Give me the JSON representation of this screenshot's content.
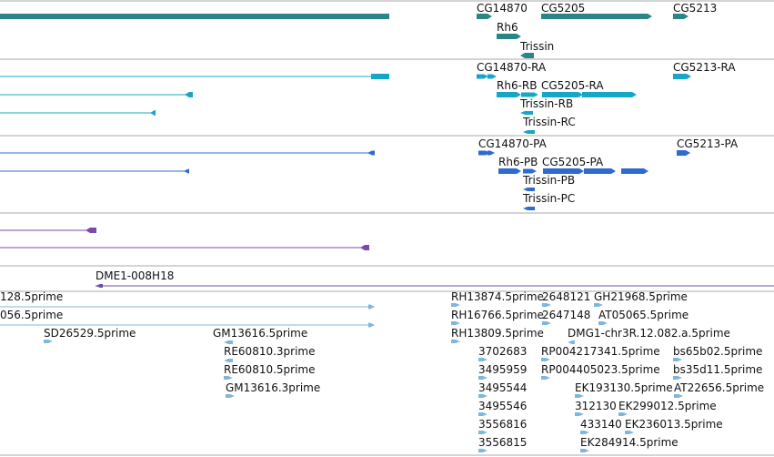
{
  "tracks": [
    {
      "name": "genes",
      "color": "#2b8585",
      "features": [
        {
          "label": "CG14870",
          "strand": "+"
        },
        {
          "label": "CG5205",
          "strand": "+"
        },
        {
          "label": "CG5213",
          "strand": "+"
        },
        {
          "label": "Rh6",
          "strand": "+"
        },
        {
          "label": "Trissin",
          "strand": "-"
        }
      ]
    },
    {
      "name": "transcripts-RNA",
      "color": "#16a7c7",
      "features": [
        {
          "label": "CG14870-RA",
          "strand": "+"
        },
        {
          "label": "CG5213-RA",
          "strand": "+"
        },
        {
          "label": "Rh6-RB",
          "strand": "+"
        },
        {
          "label": "CG5205-RA",
          "strand": "+"
        },
        {
          "label": "Trissin-RB",
          "strand": "-"
        },
        {
          "label": "Trissin-RC",
          "strand": "-"
        }
      ]
    },
    {
      "name": "transcripts-protein",
      "color": "#2d6bd1",
      "features": [
        {
          "label": "CG14870-PA",
          "strand": "+"
        },
        {
          "label": "CG5213-PA",
          "strand": "+"
        },
        {
          "label": "Rh6-PB",
          "strand": "+"
        },
        {
          "label": "CG5205-PA",
          "strand": "+"
        },
        {
          "label": "Trissin-PB",
          "strand": "-"
        },
        {
          "label": "Trissin-PC",
          "strand": "-"
        }
      ]
    },
    {
      "name": "purple-track",
      "color": "#7d4aa7",
      "features": []
    },
    {
      "name": "clone-track",
      "color": "#6e4ea2",
      "features": [
        {
          "label": "DME1-008H18",
          "strand": "-"
        }
      ]
    },
    {
      "name": "est-track",
      "color": "#7fb7dc",
      "features": [
        {
          "label": "128.5prime",
          "strand": "+"
        },
        {
          "label": "056.5prime",
          "strand": "+"
        },
        {
          "label": "SD26529.5prime",
          "strand": "+"
        },
        {
          "label": "GM13616.5prime",
          "strand": "-"
        },
        {
          "label": "RE60810.3prime",
          "strand": "-"
        },
        {
          "label": "RE60810.5prime",
          "strand": "+"
        },
        {
          "label": "GM13616.3prime",
          "strand": "+"
        },
        {
          "label": "RH13874.5prime",
          "strand": "+"
        },
        {
          "label": "2648121",
          "strand": "+"
        },
        {
          "label": "GH21968.5prime",
          "strand": "+"
        },
        {
          "label": "RH16766.5prime",
          "strand": "+"
        },
        {
          "label": "2647148",
          "strand": "+"
        },
        {
          "label": "AT05065.5prime",
          "strand": "+"
        },
        {
          "label": "RH13809.5prime",
          "strand": "+"
        },
        {
          "label": "DMG1-chr3R.12.082.a.5prime",
          "strand": "-"
        },
        {
          "label": "3702683",
          "strand": "+"
        },
        {
          "label": "RP004217341.5prime",
          "strand": "+"
        },
        {
          "label": "bs65b02.5prime",
          "strand": "+"
        },
        {
          "label": "3495959",
          "strand": "+"
        },
        {
          "label": "RP004405023.5prime",
          "strand": "+"
        },
        {
          "label": "bs35d11.5prime",
          "strand": "+"
        },
        {
          "label": "3495544",
          "strand": "+"
        },
        {
          "label": "EK193130.5prime",
          "strand": "+"
        },
        {
          "label": "AT22656.5prime",
          "strand": "+"
        },
        {
          "label": "3495546",
          "strand": "+"
        },
        {
          "label": "312130",
          "strand": "+"
        },
        {
          "label": "EK299012.5prime",
          "strand": "+"
        },
        {
          "label": "3556816",
          "strand": "+"
        },
        {
          "label": "433140",
          "strand": "+"
        },
        {
          "label": "EK236013.5prime",
          "strand": "+"
        },
        {
          "label": "3556815",
          "strand": "+"
        },
        {
          "label": "EK284914.5prime",
          "strand": "+"
        }
      ]
    }
  ]
}
